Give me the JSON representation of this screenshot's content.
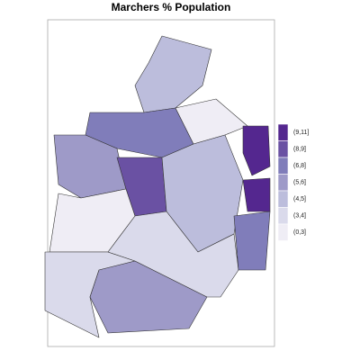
{
  "map": {
    "title": "Marchers % Population",
    "legend": [
      {
        "label": "(9,11]",
        "color": "#54278f"
      },
      {
        "label": "(8,9]",
        "color": "#6a51a3"
      },
      {
        "label": "(6,8]",
        "color": "#807dba"
      },
      {
        "label": "(5,6]",
        "color": "#9e9ac8"
      },
      {
        "label": "(4,5]",
        "color": "#bcbddc"
      },
      {
        "label": "(3,4]",
        "color": "#dadaeb"
      },
      {
        "label": "(0,3]",
        "color": "#efedf5"
      }
    ]
  }
}
